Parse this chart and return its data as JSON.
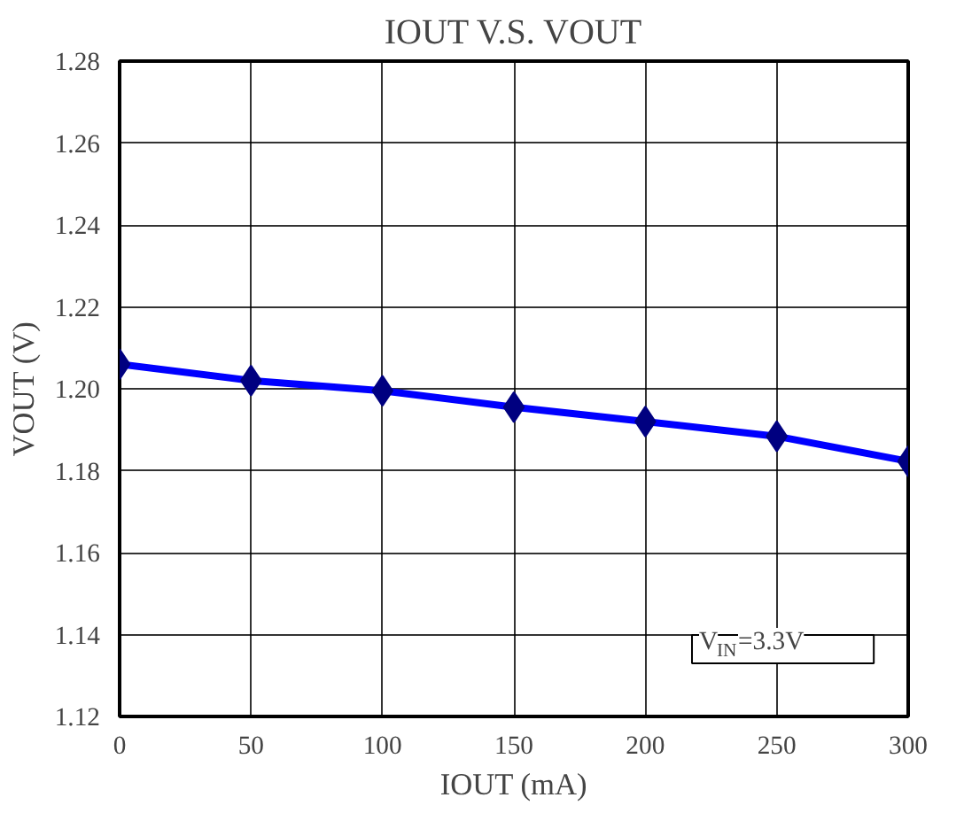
{
  "chart_data": {
    "type": "line",
    "title": "IOUT V.S. VOUT",
    "xlabel": "IOUT (mA)",
    "ylabel": "VOUT (V)",
    "x": [
      0,
      50,
      100,
      150,
      200,
      250,
      300
    ],
    "series": [
      {
        "color": "#0000ff",
        "values": [
          1.206,
          1.202,
          1.1995,
          1.1955,
          1.192,
          1.1884,
          1.1823
        ]
      }
    ],
    "marker": "diamond",
    "line_style": "solid",
    "grid": true,
    "xlim": [
      0,
      300
    ],
    "xticks": [
      0,
      50,
      100,
      150,
      200,
      250,
      300
    ],
    "ylim": [
      1.12,
      1.28
    ],
    "yticks": [
      {
        "value": 1.12,
        "label": "1.12"
      },
      {
        "value": 1.14,
        "label": "1.14"
      },
      {
        "value": 1.16,
        "label": "1.16"
      },
      {
        "value": 1.18,
        "label": "1.18"
      },
      {
        "value": 1.2,
        "label": "1.20"
      },
      {
        "value": 1.22,
        "label": "1.22"
      },
      {
        "value": 1.24,
        "label": "1.24"
      },
      {
        "value": 1.26,
        "label": "1.26"
      },
      {
        "value": 1.28,
        "label": "1.28"
      }
    ],
    "annotations": [
      "V$_{IN}$=3.3V"
    ]
  }
}
